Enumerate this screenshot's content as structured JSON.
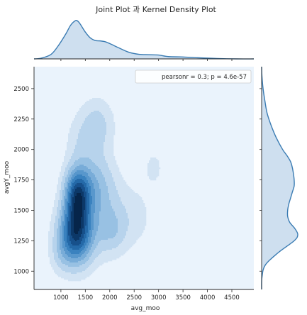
{
  "chart_data": {
    "type": "jointplot-kde",
    "title": "Joint Plot 과 Kernel Density Plot",
    "xlabel": "avg_moo",
    "ylabel": "avgY_moo",
    "xlim": [
      450,
      4950
    ],
    "ylim": [
      850,
      2680
    ],
    "x_ticks": [
      1000,
      1500,
      2000,
      2500,
      3000,
      3500,
      4000,
      4500
    ],
    "y_ticks": [
      1000,
      1250,
      1500,
      1750,
      2000,
      2250,
      2500
    ],
    "legend": {
      "text": "pearsonr = 0.3; p = 4.6e-57",
      "placement": "top-right"
    },
    "grid": false,
    "colors": {
      "background": "#eaf3fc",
      "line": "#3b7cb3",
      "fill": "#c5d9ec"
    },
    "density_blobs": [
      {
        "x": 1300,
        "y": 1280,
        "sx": 240,
        "sy": 160,
        "w": 1.0
      },
      {
        "x": 1340,
        "y": 1650,
        "sx": 180,
        "sy": 140,
        "w": 0.9
      },
      {
        "x": 1330,
        "y": 1460,
        "sx": 200,
        "sy": 130,
        "w": 0.38
      },
      {
        "x": 1700,
        "y": 1720,
        "sx": 260,
        "sy": 180,
        "w": 0.32
      },
      {
        "x": 1900,
        "y": 1450,
        "sx": 330,
        "sy": 220,
        "w": 0.22
      },
      {
        "x": 1750,
        "y": 2200,
        "sx": 230,
        "sy": 150,
        "w": 0.24
      },
      {
        "x": 2050,
        "y": 1330,
        "sx": 200,
        "sy": 120,
        "w": 0.18
      },
      {
        "x": 1400,
        "y": 2050,
        "sx": 220,
        "sy": 170,
        "w": 0.14
      },
      {
        "x": 2900,
        "y": 1850,
        "sx": 150,
        "sy": 110,
        "w": 0.11
      },
      {
        "x": 2550,
        "y": 1450,
        "sx": 260,
        "sy": 180,
        "w": 0.1
      },
      {
        "x": 3580,
        "y": 1980,
        "sx": 110,
        "sy": 80,
        "w": 0.045
      },
      {
        "x": 1000,
        "y": 1120,
        "sx": 160,
        "sy": 100,
        "w": 0.12
      }
    ],
    "x_marginal": {
      "x": [
        450,
        600,
        800,
        950,
        1100,
        1200,
        1300,
        1350,
        1400,
        1500,
        1600,
        1700,
        1800,
        1900,
        2000,
        2200,
        2400,
        2600,
        2800,
        3000,
        3200,
        3500,
        3800,
        4200,
        4600,
        4950
      ],
      "density": [
        0.0,
        0.02,
        0.12,
        0.35,
        0.65,
        0.88,
        1.0,
        0.98,
        0.9,
        0.7,
        0.55,
        0.48,
        0.47,
        0.45,
        0.4,
        0.28,
        0.17,
        0.12,
        0.11,
        0.1,
        0.06,
        0.05,
        0.03,
        0.01,
        0.0,
        0.0
      ]
    },
    "y_marginal": {
      "y": [
        850,
        950,
        1050,
        1150,
        1250,
        1300,
        1350,
        1400,
        1450,
        1500,
        1550,
        1600,
        1650,
        1700,
        1750,
        1800,
        1850,
        1900,
        1950,
        2000,
        2100,
        2200,
        2300,
        2400,
        2500,
        2600,
        2680
      ],
      "density": [
        0.0,
        0.01,
        0.1,
        0.45,
        0.9,
        1.0,
        0.92,
        0.78,
        0.72,
        0.72,
        0.75,
        0.8,
        0.85,
        0.9,
        0.9,
        0.88,
        0.85,
        0.8,
        0.7,
        0.58,
        0.4,
        0.26,
        0.15,
        0.09,
        0.04,
        0.01,
        0.0
      ]
    }
  }
}
